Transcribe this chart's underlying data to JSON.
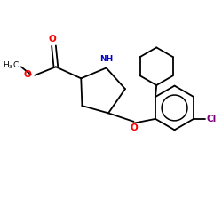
{
  "bg_color": "#ffffff",
  "atom_colors": {
    "O": "#ff0000",
    "N": "#0000cc",
    "Cl": "#7f007f",
    "C": "#000000"
  },
  "bond_color": "#000000",
  "lw": 1.3
}
